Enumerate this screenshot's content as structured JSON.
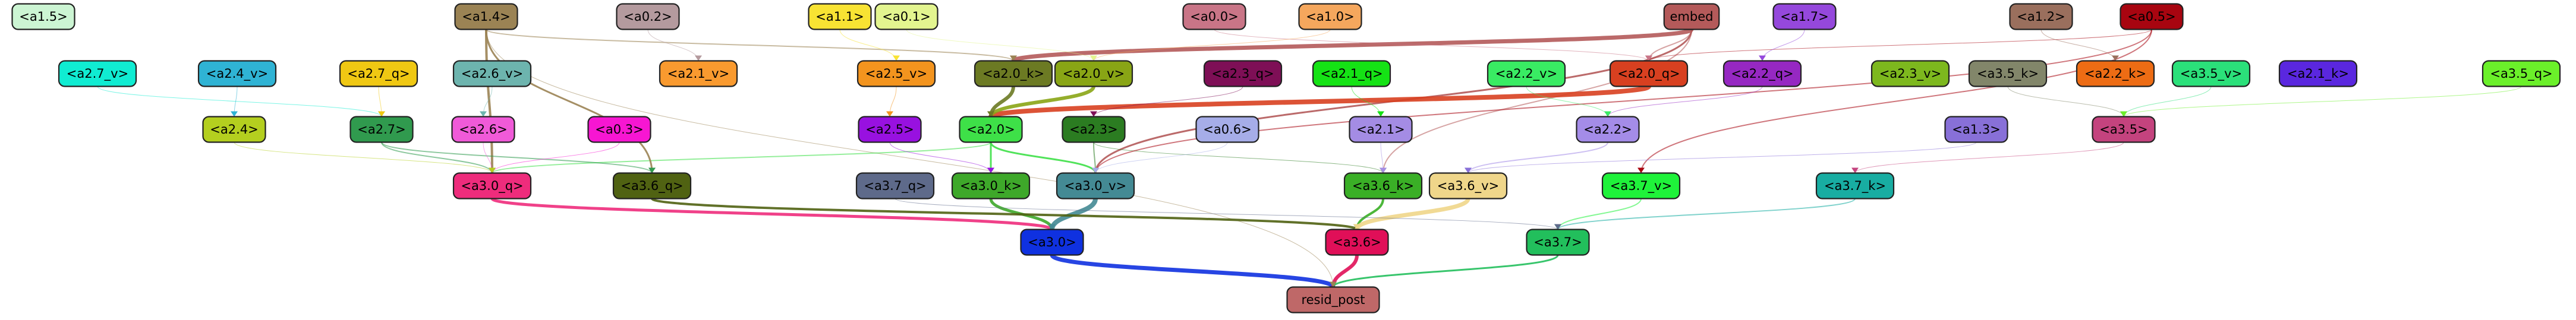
{
  "graph": {
    "title": "",
    "nodes": [
      {
        "id": "a1.5",
        "label": "<a1.5>",
        "fill": "#ccf5d3",
        "text": "#000000"
      },
      {
        "id": "a1.4",
        "label": "<a1.4>",
        "fill": "#9b8354",
        "text": "#000000"
      },
      {
        "id": "a0.2",
        "label": "<a0.2>",
        "fill": "#b49a9e",
        "text": "#000000"
      },
      {
        "id": "a1.1",
        "label": "<a1.1>",
        "fill": "#f8e333",
        "text": "#000000"
      },
      {
        "id": "a0.1",
        "label": "<a0.1>",
        "fill": "#e3f58f",
        "text": "#000000"
      },
      {
        "id": "a0.0",
        "label": "<a0.0>",
        "fill": "#c97587",
        "text": "#000000"
      },
      {
        "id": "a1.0",
        "label": "<a1.0>",
        "fill": "#f5a75d",
        "text": "#000000"
      },
      {
        "id": "embed",
        "label": "embed",
        "fill": "#b45a5a",
        "text": "#000000"
      },
      {
        "id": "a1.7",
        "label": "<a1.7>",
        "fill": "#9548dc",
        "text": "#000000"
      },
      {
        "id": "a1.2",
        "label": "<a1.2>",
        "fill": "#9a6f5d",
        "text": "#000000"
      },
      {
        "id": "a0.5",
        "label": "<a0.5>",
        "fill": "#a80510",
        "text": "#000000"
      },
      {
        "id": "a2.7_v",
        "label": "<a2.7_v>",
        "fill": "#10ecd2",
        "text": "#000000"
      },
      {
        "id": "a2.4_v",
        "label": "<a2.4_v>",
        "fill": "#2fb3d4",
        "text": "#000000"
      },
      {
        "id": "a2.7_q",
        "label": "<a2.7_q>",
        "fill": "#f0c813",
        "text": "#000000"
      },
      {
        "id": "a2.6_v",
        "label": "<a2.6_v>",
        "fill": "#6db4ae",
        "text": "#000000"
      },
      {
        "id": "a2.1_v",
        "label": "<a2.1_v>",
        "fill": "#f99a2f",
        "text": "#000000"
      },
      {
        "id": "a2.5_v",
        "label": "<a2.5_v>",
        "fill": "#f3941e",
        "text": "#000000"
      },
      {
        "id": "a2.0_k",
        "label": "<a2.0_k>",
        "fill": "#6c7a23",
        "text": "#000000"
      },
      {
        "id": "a2.0_v",
        "label": "<a2.0_v>",
        "fill": "#89a515",
        "text": "#000000"
      },
      {
        "id": "a2.3_q",
        "label": "<a2.3_q>",
        "fill": "#7e0f56",
        "text": "#000000"
      },
      {
        "id": "a2.1_q",
        "label": "<a2.1_q>",
        "fill": "#15e215",
        "text": "#000000"
      },
      {
        "id": "a2.2_v",
        "label": "<a2.2_v>",
        "fill": "#39ec63",
        "text": "#000000"
      },
      {
        "id": "a2.0_q",
        "label": "<a2.0_q>",
        "fill": "#d84020",
        "text": "#000000"
      },
      {
        "id": "a2.2_q",
        "label": "<a2.2_q>",
        "fill": "#9628c2",
        "text": "#000000"
      },
      {
        "id": "a2.3_v",
        "label": "<a2.3_v>",
        "fill": "#7db81e",
        "text": "#000000"
      },
      {
        "id": "a3.5_k",
        "label": "<a3.5_k>",
        "fill": "#82866a",
        "text": "#000000"
      },
      {
        "id": "a2.2_k",
        "label": "<a2.2_k>",
        "fill": "#ed6c14",
        "text": "#000000"
      },
      {
        "id": "a3.5_v",
        "label": "<a3.5_v>",
        "fill": "#2be07a",
        "text": "#000000"
      },
      {
        "id": "a2.1_k",
        "label": "<a2.1_k>",
        "fill": "#5a27df",
        "text": "#000000"
      },
      {
        "id": "a3.5_q",
        "label": "<a3.5_q>",
        "fill": "#6bf02a",
        "text": "#000000"
      },
      {
        "id": "a2.4",
        "label": "<a2.4>",
        "fill": "#b4cf1f",
        "text": "#000000"
      },
      {
        "id": "a2.7",
        "label": "<a2.7>",
        "fill": "#309a4e",
        "text": "#000000"
      },
      {
        "id": "a2.6",
        "label": "<a2.6>",
        "fill": "#f05ad8",
        "text": "#000000"
      },
      {
        "id": "a0.3",
        "label": "<a0.3>",
        "fill": "#f716d2",
        "text": "#000000"
      },
      {
        "id": "a2.5",
        "label": "<a2.5>",
        "fill": "#9811e0",
        "text": "#000000"
      },
      {
        "id": "a2.0",
        "label": "<a2.0>",
        "fill": "#3ee048",
        "text": "#000000"
      },
      {
        "id": "a2.3",
        "label": "<a2.3>",
        "fill": "#2b7c21",
        "text": "#000000"
      },
      {
        "id": "a0.6",
        "label": "<a0.6>",
        "fill": "#a6ade8",
        "text": "#000000"
      },
      {
        "id": "a2.1",
        "label": "<a2.1>",
        "fill": "#a48ce4",
        "text": "#000000"
      },
      {
        "id": "a2.2",
        "label": "<a2.2>",
        "fill": "#a48ce8",
        "text": "#000000"
      },
      {
        "id": "a1.3",
        "label": "<a1.3>",
        "fill": "#8870d8",
        "text": "#000000"
      },
      {
        "id": "a3.5",
        "label": "<a3.5>",
        "fill": "#c4437e",
        "text": "#000000"
      },
      {
        "id": "a3.0_q",
        "label": "<a3.0_q>",
        "fill": "#ee2c7c",
        "text": "#000000"
      },
      {
        "id": "a3.6_q",
        "label": "<a3.6_q>",
        "fill": "#506212",
        "text": "#000000"
      },
      {
        "id": "a3.7_q",
        "label": "<a3.7_q>",
        "fill": "#5e6a8a",
        "text": "#000000"
      },
      {
        "id": "a3.0_k",
        "label": "<a3.0_k>",
        "fill": "#3ea82a",
        "text": "#000000"
      },
      {
        "id": "a3.0_v",
        "label": "<a3.0_v>",
        "fill": "#448a94",
        "text": "#000000"
      },
      {
        "id": "a3.6_k",
        "label": "<a3.6_k>",
        "fill": "#3aaf26",
        "text": "#000000"
      },
      {
        "id": "a3.6_v",
        "label": "<a3.6_v>",
        "fill": "#efd68a",
        "text": "#000000"
      },
      {
        "id": "a3.7_v",
        "label": "<a3.7_v>",
        "fill": "#1ff23a",
        "text": "#000000"
      },
      {
        "id": "a3.7_k",
        "label": "<a3.7_k>",
        "fill": "#18ada2",
        "text": "#000000"
      },
      {
        "id": "a3.0",
        "label": "<a3.0>",
        "fill": "#0f31e0",
        "text": "#000000"
      },
      {
        "id": "a3.6",
        "label": "<a3.6>",
        "fill": "#e00f58",
        "text": "#000000"
      },
      {
        "id": "a3.7",
        "label": "<a3.7>",
        "fill": "#22bf5c",
        "text": "#000000"
      },
      {
        "id": "resid_post",
        "label": "resid_post",
        "fill": "#bf6868",
        "text": "#000000"
      }
    ],
    "edges": [
      {
        "from": "a3.0",
        "to": "resid_post",
        "color": "#0f31e0",
        "weight": 7
      },
      {
        "from": "a3.6",
        "to": "resid_post",
        "color": "#e00f58",
        "weight": 6
      },
      {
        "from": "a3.7",
        "to": "resid_post",
        "color": "#22bf5c",
        "weight": 3
      },
      {
        "from": "a1.4",
        "to": "resid_post",
        "color": "#9b8354",
        "weight": 1
      },
      {
        "from": "a3.0_q",
        "to": "a3.0",
        "color": "#ee2c7c",
        "weight": 5
      },
      {
        "from": "a3.0_k",
        "to": "a3.0",
        "color": "#3ea82a",
        "weight": 5
      },
      {
        "from": "a3.0_v",
        "to": "a3.0",
        "color": "#448a94",
        "weight": 8
      },
      {
        "from": "a3.6_q",
        "to": "a3.6",
        "color": "#506212",
        "weight": 4
      },
      {
        "from": "a3.6_k",
        "to": "a3.6",
        "color": "#3aaf26",
        "weight": 4
      },
      {
        "from": "a3.6_v",
        "to": "a3.6",
        "color": "#efd68a",
        "weight": 7
      },
      {
        "from": "a3.7_v",
        "to": "a3.7",
        "color": "#1ff23a",
        "weight": 2
      },
      {
        "from": "a3.7_k",
        "to": "a3.7",
        "color": "#18ada2",
        "weight": 2
      },
      {
        "from": "a3.7_q",
        "to": "a3.7",
        "color": "#5e6a8a",
        "weight": 1
      },
      {
        "from": "embed",
        "to": "a3.0_v",
        "color": "#b45a5a",
        "weight": 3
      },
      {
        "from": "embed",
        "to": "a2.0_k",
        "color": "#b45a5a",
        "weight": 7
      },
      {
        "from": "embed",
        "to": "a3.6_k",
        "color": "#b45a5a",
        "weight": 2
      },
      {
        "from": "embed",
        "to": "a2.0_q",
        "color": "#b45a5a",
        "weight": 2
      },
      {
        "from": "a2.0_q",
        "to": "a2.0",
        "color": "#d84020",
        "weight": 8
      },
      {
        "from": "a2.0_v",
        "to": "a2.0",
        "color": "#89a515",
        "weight": 6
      },
      {
        "from": "a2.0_k",
        "to": "a2.0",
        "color": "#6c7a23",
        "weight": 6
      },
      {
        "from": "a2.0",
        "to": "a3.0_k",
        "color": "#3ee048",
        "weight": 3
      },
      {
        "from": "a2.0",
        "to": "a3.0_v",
        "color": "#3ee048",
        "weight": 3
      },
      {
        "from": "a2.0",
        "to": "a3.0_q",
        "color": "#3ee048",
        "weight": 2
      },
      {
        "from": "a2.3",
        "to": "a3.0_v",
        "color": "#2b7c21",
        "weight": 2
      },
      {
        "from": "a2.3",
        "to": "a3.6_k",
        "color": "#2b7c21",
        "weight": 1
      },
      {
        "from": "a1.4",
        "to": "a3.0_q",
        "color": "#9b8354",
        "weight": 4
      },
      {
        "from": "a1.4",
        "to": "a3.6_q",
        "color": "#9b8354",
        "weight": 3
      },
      {
        "from": "a1.4",
        "to": "a2.0_k",
        "color": "#9b8354",
        "weight": 2
      },
      {
        "from": "a2.7",
        "to": "a3.0_q",
        "color": "#309a4e",
        "weight": 2
      },
      {
        "from": "a2.7",
        "to": "a3.6_q",
        "color": "#309a4e",
        "weight": 2
      },
      {
        "from": "a2.6",
        "to": "a3.0_q",
        "color": "#f05ad8",
        "weight": 1
      },
      {
        "from": "a2.5",
        "to": "a3.0_k",
        "color": "#9811e0",
        "weight": 1
      },
      {
        "from": "a2.2",
        "to": "a3.6_v",
        "color": "#a48ce8",
        "weight": 2
      },
      {
        "from": "a2.1",
        "to": "a3.6_k",
        "color": "#a48ce4",
        "weight": 1
      },
      {
        "from": "a0.5",
        "to": "a3.7_v",
        "color": "#a80510",
        "weight": 2
      },
      {
        "from": "a0.5",
        "to": "a3.0_v",
        "color": "#a80510",
        "weight": 2
      },
      {
        "from": "a0.5",
        "to": "a2.0_q",
        "color": "#a80510",
        "weight": 1
      },
      {
        "from": "a0.0",
        "to": "a2.0_q",
        "color": "#c97587",
        "weight": 1
      },
      {
        "from": "a1.0",
        "to": "a2.0_v",
        "color": "#f5a75d",
        "weight": 1
      },
      {
        "from": "a2.7_v",
        "to": "a2.7",
        "color": "#10ecd2",
        "weight": 1
      },
      {
        "from": "a2.7_q",
        "to": "a2.7",
        "color": "#f0c813",
        "weight": 1
      },
      {
        "from": "a2.4_v",
        "to": "a2.4",
        "color": "#2fb3d4",
        "weight": 1
      },
      {
        "from": "a2.6_v",
        "to": "a2.6",
        "color": "#6db4ae",
        "weight": 1
      },
      {
        "from": "a2.5_v",
        "to": "a2.5",
        "color": "#f3941e",
        "weight": 1
      },
      {
        "from": "a2.3_q",
        "to": "a2.3",
        "color": "#7e0f56",
        "weight": 1
      },
      {
        "from": "a2.1_q",
        "to": "a2.1",
        "color": "#15e215",
        "weight": 1
      },
      {
        "from": "a2.2_q",
        "to": "a2.2",
        "color": "#9628c2",
        "weight": 1
      },
      {
        "from": "a2.2_v",
        "to": "a2.2",
        "color": "#39ec63",
        "weight": 1
      },
      {
        "from": "a3.5_v",
        "to": "a3.5",
        "color": "#2be07a",
        "weight": 1
      },
      {
        "from": "a3.5_k",
        "to": "a3.5",
        "color": "#82866a",
        "weight": 1
      },
      {
        "from": "a3.5_q",
        "to": "a3.5",
        "color": "#6bf02a",
        "weight": 1
      },
      {
        "from": "a3.5",
        "to": "a3.7_k",
        "color": "#c4437e",
        "weight": 1
      },
      {
        "from": "a1.3",
        "to": "a3.6_v",
        "color": "#8870d8",
        "weight": 1
      },
      {
        "from": "a0.6",
        "to": "a3.0_v",
        "color": "#a6ade8",
        "weight": 1
      },
      {
        "from": "a0.3",
        "to": "a3.0_q",
        "color": "#f716d2",
        "weight": 1
      },
      {
        "from": "a1.2",
        "to": "a2.2_k",
        "color": "#9a6f5d",
        "weight": 1
      },
      {
        "from": "a1.7",
        "to": "a2.2_q",
        "color": "#9548dc",
        "weight": 1
      },
      {
        "from": "a0.2",
        "to": "a2.1_v",
        "color": "#b49a9e",
        "weight": 1
      },
      {
        "from": "a1.1",
        "to": "a2.5_v",
        "color": "#f8e333",
        "weight": 1
      },
      {
        "from": "a0.1",
        "to": "a2.0_v",
        "color": "#e3f58f",
        "weight": 1
      },
      {
        "from": "a2.4",
        "to": "a3.0_q",
        "color": "#b4cf1f",
        "weight": 1
      }
    ]
  }
}
